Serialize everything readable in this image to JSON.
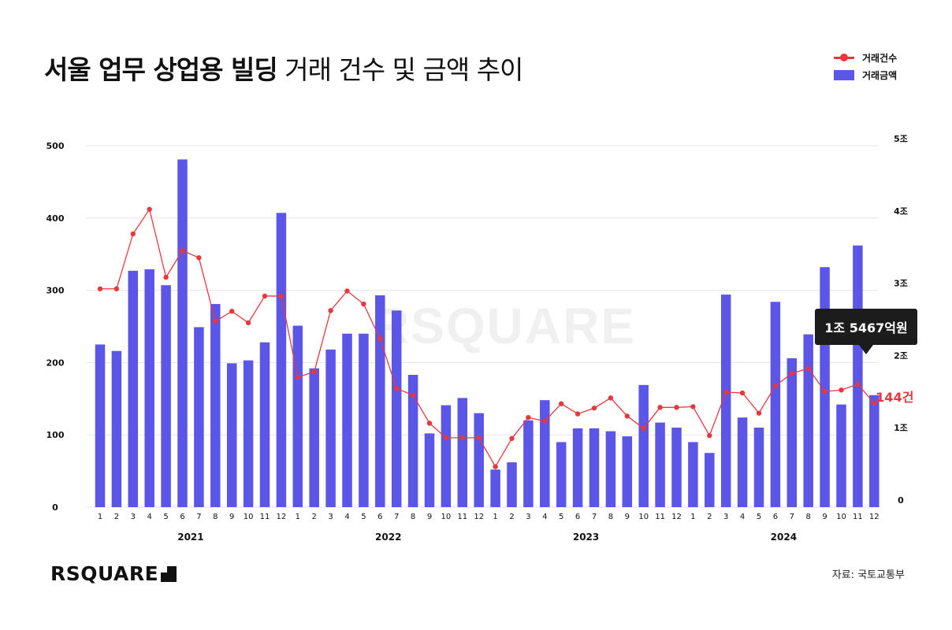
{
  "title": {
    "bold": "서울 업무 상업용 빌딩",
    "light": "거래 건수 및 금액 추이"
  },
  "legend": {
    "line": "거래건수",
    "bar": "거래금액"
  },
  "brand": "RSQUARE",
  "source": "자료: 국토교통부",
  "colors": {
    "bar": "#5b55e8",
    "line": "#e8383d",
    "grid": "#e6e6e6",
    "callout_bg": "#1c1c1c"
  },
  "chart_data": {
    "type": "bar+line",
    "years": [
      {
        "label": "2021"
      },
      {
        "label": "2022"
      },
      {
        "label": "2023"
      },
      {
        "label": "2024"
      }
    ],
    "months": [
      "1",
      "2",
      "3",
      "4",
      "5",
      "6",
      "7",
      "8",
      "9",
      "10",
      "11",
      "12",
      "1",
      "2",
      "3",
      "4",
      "5",
      "6",
      "7",
      "8",
      "9",
      "10",
      "11",
      "12",
      "1",
      "2",
      "3",
      "4",
      "5",
      "6",
      "7",
      "8",
      "9",
      "10",
      "11",
      "12",
      "1",
      "2",
      "3",
      "4",
      "5",
      "6",
      "7",
      "8",
      "9",
      "10",
      "11",
      "12"
    ],
    "left_axis": {
      "ticks": [
        "0",
        "100",
        "200",
        "300",
        "400",
        "500"
      ],
      "min": 0,
      "max": 500
    },
    "right_axis": {
      "ticks": [
        "0",
        "1조",
        "2조",
        "3조",
        "4조",
        "5조"
      ],
      "min": 0,
      "max": 5
    },
    "series": [
      {
        "name": "거래금액",
        "type": "bar",
        "axis": "right",
        "unit": "조원",
        "values": [
          2.25,
          2.16,
          3.27,
          3.29,
          3.07,
          4.81,
          2.49,
          2.81,
          1.99,
          2.03,
          2.28,
          4.07,
          2.51,
          1.92,
          2.18,
          2.4,
          2.4,
          2.93,
          2.72,
          1.83,
          1.02,
          1.41,
          1.51,
          1.3,
          0.52,
          0.62,
          1.2,
          1.48,
          0.9,
          1.09,
          1.09,
          1.05,
          0.98,
          1.69,
          1.17,
          1.1,
          0.9,
          0.75,
          2.94,
          1.24,
          1.1,
          2.84,
          2.06,
          2.39,
          3.32,
          1.42,
          3.62,
          1.55
        ]
      },
      {
        "name": "거래건수",
        "type": "line",
        "axis": "left",
        "unit": "건",
        "values": [
          302,
          302,
          378,
          412,
          318,
          355,
          345,
          257,
          271,
          255,
          292,
          292,
          180,
          187,
          272,
          299,
          281,
          233,
          164,
          155,
          116,
          96,
          96,
          96,
          56,
          95,
          124,
          119,
          143,
          129,
          137,
          151,
          126,
          109,
          138,
          138,
          139,
          99,
          159,
          158,
          130,
          168,
          185,
          192,
          160,
          162,
          170,
          144
        ]
      }
    ],
    "callout": {
      "text": "1조 5467억원"
    },
    "end_label": {
      "text": "144건"
    },
    "watermark": "RSQUARE"
  }
}
